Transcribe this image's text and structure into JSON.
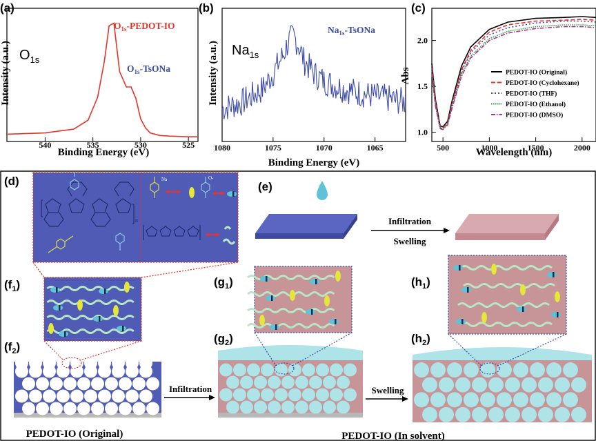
{
  "chart_data": [
    {
      "panel": "(a)",
      "type": "line",
      "xlabel": "Binding Energy (eV)",
      "ylabel": "Intensity (a.u.)",
      "element_label": {
        "main": "O",
        "sub": "1s"
      },
      "x_ticks": [
        "540",
        "535",
        "530",
        "525"
      ],
      "xlim": [
        544,
        524
      ],
      "annotations": [
        {
          "main": "O",
          "sub": "1s",
          "rest": "-PEDOT-IO",
          "color": "#e8332a"
        },
        {
          "main": "O",
          "sub": "1s",
          "rest": "-TsONa",
          "color": "#3b4aa8"
        }
      ],
      "series": [
        {
          "color": "#e8332a",
          "x": [
            544,
            540,
            537,
            535.5,
            534.5,
            533.8,
            533.3,
            532.8,
            532.2,
            531.5,
            531.0,
            530.5,
            530.0,
            529.5,
            529.0,
            528,
            527,
            525,
            524
          ],
          "y": [
            0.03,
            0.04,
            0.07,
            0.14,
            0.32,
            0.6,
            0.88,
            0.9,
            0.52,
            0.4,
            0.4,
            0.31,
            0.15,
            0.08,
            0.04,
            0.02,
            0.015,
            0.01,
            0.01
          ]
        }
      ]
    },
    {
      "panel": "(b)",
      "type": "line",
      "xlabel": "Binding Energy (eV)",
      "ylabel": "Intensity (a.u.)",
      "element_label": {
        "main": "Na",
        "sub": "1s"
      },
      "x_ticks": [
        "1080",
        "1075",
        "1070",
        "1065"
      ],
      "xlim": [
        1080,
        1062
      ],
      "annotations": [
        {
          "main": "Na",
          "sub": "1s",
          "rest": "-TsONa",
          "color": "#3b4aa8"
        }
      ],
      "series": [
        {
          "color": "#3b4aa8",
          "x": [
            1080,
            1078,
            1076,
            1075,
            1074,
            1073.5,
            1073,
            1072.5,
            1072,
            1071,
            1070,
            1068,
            1066,
            1064,
            1062
          ],
          "y": [
            0.25,
            0.3,
            0.4,
            0.52,
            0.66,
            0.76,
            0.8,
            0.74,
            0.62,
            0.52,
            0.46,
            0.4,
            0.36,
            0.33,
            0.3
          ]
        }
      ]
    },
    {
      "panel": "(c)",
      "type": "line",
      "xlabel": "Wavelength (nm)",
      "ylabel": "Abs",
      "x_ticks": [
        "500",
        "1000",
        "1500",
        "2000"
      ],
      "y_ticks": [
        "1.0",
        "1.5",
        "2.0"
      ],
      "xlim": [
        380,
        2150
      ],
      "ylim": [
        0.9,
        2.35
      ],
      "series": [
        {
          "name": "PEDOT-IO (Original)",
          "color": "#000000",
          "dash": "",
          "x": [
            380,
            420,
            470,
            500,
            550,
            600,
            700,
            800,
            1000,
            1200,
            1500,
            1800,
            2000,
            2150
          ],
          "y": [
            1.75,
            1.35,
            1.07,
            1.06,
            1.12,
            1.35,
            1.72,
            1.93,
            2.12,
            2.2,
            2.24,
            2.25,
            2.26,
            2.25
          ]
        },
        {
          "name": "PEDOT-IO (Cyclohexane)",
          "color": "#e8332a",
          "dash": "6,3",
          "x": [
            380,
            420,
            470,
            500,
            550,
            600,
            700,
            800,
            1000,
            1200,
            1500,
            1800,
            2000,
            2150
          ],
          "y": [
            1.7,
            1.32,
            1.06,
            1.05,
            1.1,
            1.32,
            1.68,
            1.89,
            2.09,
            2.17,
            2.21,
            2.22,
            2.23,
            2.22
          ]
        },
        {
          "name": "PEDOT-IO (THF)",
          "color": "#3b4aa8",
          "dash": "2,3",
          "x": [
            380,
            420,
            470,
            500,
            550,
            600,
            700,
            800,
            1000,
            1200,
            1500,
            1800,
            2000,
            2150
          ],
          "y": [
            1.68,
            1.3,
            1.05,
            1.04,
            1.09,
            1.3,
            1.66,
            1.87,
            2.06,
            2.14,
            2.19,
            2.21,
            2.21,
            2.2
          ]
        },
        {
          "name": "PEDOT-IO (Ethanol)",
          "color": "#2ea043",
          "dash": "1.5,1.5",
          "x": [
            380,
            420,
            470,
            500,
            550,
            600,
            700,
            800,
            1000,
            1200,
            1500,
            1800,
            2000,
            2150
          ],
          "y": [
            1.66,
            1.29,
            1.05,
            1.04,
            1.09,
            1.28,
            1.63,
            1.83,
            2.02,
            2.1,
            2.15,
            2.17,
            2.17,
            2.16
          ]
        },
        {
          "name": "PEDOT-IO (DMSO)",
          "color": "#b0328a",
          "dash": "6,2,1.5,2",
          "x": [
            380,
            420,
            470,
            500,
            550,
            600,
            700,
            800,
            1000,
            1200,
            1500,
            1800,
            2000,
            2150
          ],
          "y": [
            1.64,
            1.28,
            1.04,
            1.03,
            1.08,
            1.27,
            1.61,
            1.81,
            2.0,
            2.08,
            2.13,
            2.15,
            2.15,
            2.14
          ]
        }
      ]
    }
  ],
  "diagram": {
    "labels": {
      "d": "(d)",
      "e": "(e)",
      "f1": {
        "main": "(f",
        "sub": "1",
        "end": ")"
      },
      "f2": {
        "main": "(f",
        "sub": "2",
        "end": ")"
      },
      "g1": {
        "main": "(g",
        "sub": "1",
        "end": ")"
      },
      "g2": {
        "main": "(g",
        "sub": "2",
        "end": ")"
      },
      "h1": {
        "main": "(h",
        "sub": "1",
        "end": ")"
      },
      "h2": {
        "main": "(h",
        "sub": "2",
        "end": ")"
      }
    },
    "arrows": {
      "infiltration_top": "Infiltration",
      "swelling_top": "Swelling",
      "infiltration_bottom": "Infiltration",
      "swelling_bottom": "Swelling"
    },
    "captions": {
      "original": "PEDOT-IO (Original)",
      "solvent": "PEDOT-IO (In solvent)"
    },
    "colors": {
      "substrate_blue": "#4f5bb5",
      "swollen_pink": "#c79498",
      "solvent_cyan": "#aee3e8",
      "chain_green": "#b9e6c4",
      "dopant_yellow": "#e4e639",
      "dopant_cyan": "#5ec3d8",
      "frame_border": "#000000"
    },
    "chem": {
      "sub_n": "n",
      "na": "Na",
      "o_minus": "O-"
    }
  }
}
